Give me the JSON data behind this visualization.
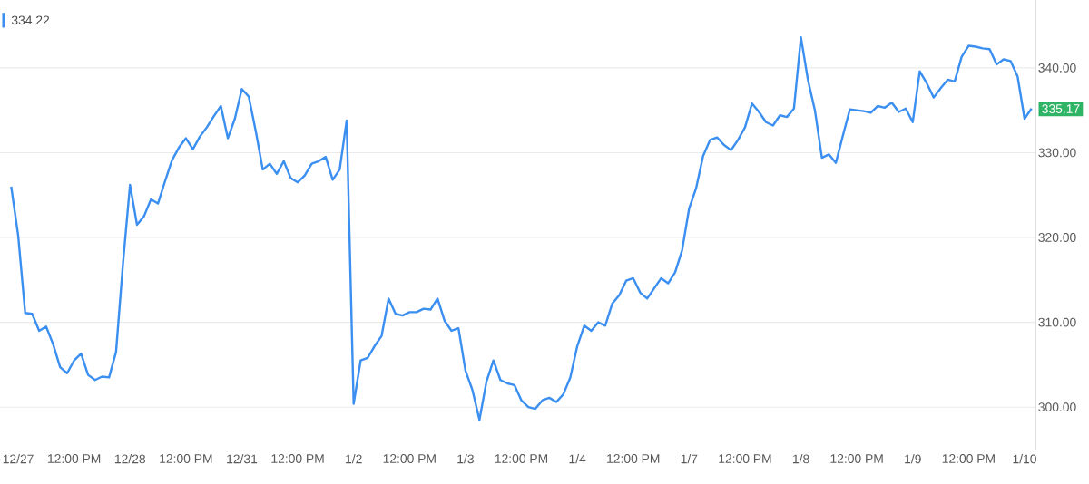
{
  "chart_data": {
    "type": "line",
    "categories": [
      null,
      "12/27",
      null,
      null,
      null,
      null,
      null,
      null,
      null,
      "12:00 PM",
      null,
      null,
      null,
      null,
      null,
      null,
      null,
      "12/28",
      null,
      null,
      null,
      null,
      null,
      null,
      null,
      "12:00 PM",
      null,
      null,
      null,
      null,
      null,
      null,
      null,
      "12/31",
      null,
      null,
      null,
      null,
      null,
      null,
      null,
      "12:00 PM",
      null,
      null,
      null,
      null,
      null,
      null,
      null,
      "1/2",
      null,
      null,
      null,
      null,
      null,
      null,
      null,
      "12:00 PM",
      null,
      null,
      null,
      null,
      null,
      null,
      null,
      "1/3",
      null,
      null,
      null,
      null,
      null,
      null,
      null,
      "12:00 PM",
      null,
      null,
      null,
      null,
      null,
      null,
      null,
      "1/4",
      null,
      null,
      null,
      null,
      null,
      null,
      null,
      "12:00 PM",
      null,
      null,
      null,
      null,
      null,
      null,
      null,
      "1/7",
      null,
      null,
      null,
      null,
      null,
      null,
      null,
      "12:00 PM",
      null,
      null,
      null,
      null,
      null,
      null,
      null,
      "1/8",
      null,
      null,
      null,
      null,
      null,
      null,
      null,
      "12:00 PM",
      null,
      null,
      null,
      null,
      null,
      null,
      null,
      "1/9",
      null,
      null,
      null,
      null,
      null,
      null,
      null,
      "12:00 PM",
      null,
      null,
      null,
      null,
      null,
      null,
      null,
      "1/10",
      null
    ],
    "series": [
      {
        "color": "#3b8ff0",
        "values": [
          326.0,
          320.2,
          311.1,
          311.0,
          309.0,
          309.5,
          307.4,
          304.7,
          304.0,
          305.5,
          306.3,
          303.8,
          303.2,
          303.6,
          303.5,
          306.5,
          317.0,
          326.2,
          321.5,
          322.5,
          324.5,
          324.0,
          326.6,
          329.1,
          330.6,
          331.7,
          330.4,
          331.9,
          333.0,
          334.3,
          335.5,
          331.7,
          334.0,
          337.5,
          336.6,
          332.5,
          328.0,
          328.7,
          327.5,
          329.0,
          327.0,
          326.5,
          327.3,
          328.7,
          329.0,
          329.5,
          326.8,
          328.0,
          333.8,
          300.4,
          305.5,
          305.8,
          307.2,
          308.4,
          312.8,
          311.0,
          310.8,
          311.2,
          311.2,
          311.6,
          311.5,
          312.8,
          310.2,
          309.0,
          309.3,
          304.3,
          302.0,
          298.5,
          303.0,
          305.5,
          303.2,
          302.8,
          302.6,
          300.8,
          300.0,
          299.8,
          300.8,
          301.1,
          300.6,
          301.5,
          303.5,
          307.2,
          309.6,
          309.0,
          310.0,
          309.6,
          312.2,
          313.2,
          314.9,
          315.2,
          313.5,
          312.8,
          314.0,
          315.2,
          314.6,
          315.9,
          318.5,
          323.4,
          325.8,
          329.6,
          331.5,
          331.8,
          330.9,
          330.3,
          331.5,
          333.0,
          335.8,
          334.8,
          333.6,
          333.2,
          334.4,
          334.2,
          335.2,
          343.6,
          338.6,
          335.0,
          329.4,
          329.8,
          328.8,
          332.0,
          335.1,
          335.0,
          334.9,
          334.7,
          335.5,
          335.3,
          335.9,
          334.8,
          335.2,
          333.6,
          339.6,
          338.2,
          336.5,
          337.6,
          338.6,
          338.4,
          341.3,
          342.6,
          342.5,
          342.3,
          342.2,
          340.4,
          341.0,
          340.8,
          339.0,
          334.0,
          335.2
        ]
      }
    ],
    "ylim": [
      295,
      348
    ],
    "yticks": [
      {
        "value": 300,
        "label": "300.00"
      },
      {
        "value": 310,
        "label": "310.00"
      },
      {
        "value": 320,
        "label": "320.00"
      },
      {
        "value": 330,
        "label": "330.00"
      },
      {
        "value": 340,
        "label": "340.00"
      }
    ],
    "grid": "y",
    "annotations": [
      "334.22",
      {
        "text": "335.17",
        "y": 335.17
      }
    ]
  }
}
